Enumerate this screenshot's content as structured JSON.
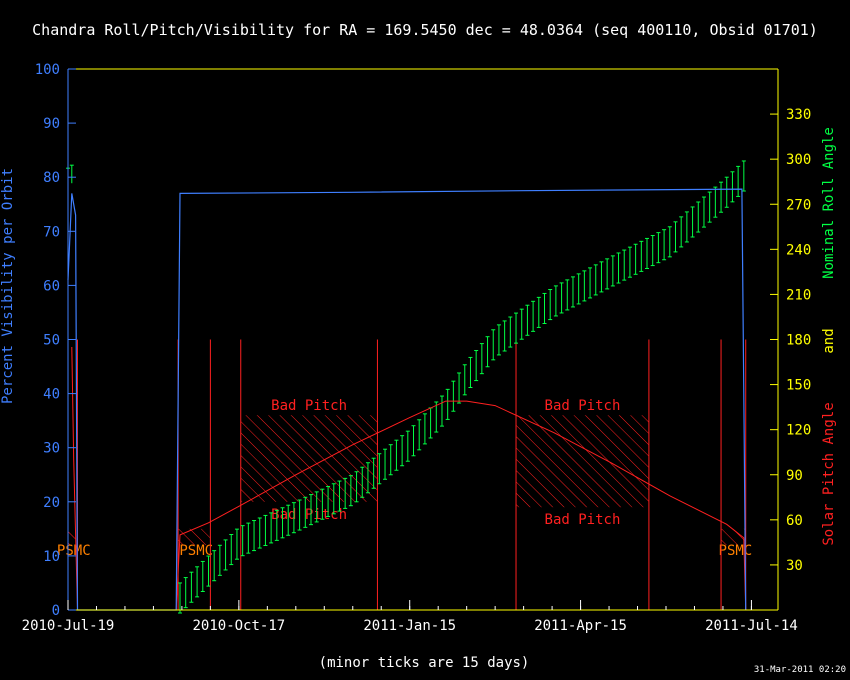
{
  "title": "Chandra Roll/Pitch/Visibility for RA = 169.5450 dec = 48.0364 (seq 400110, Obsid 01701)",
  "footer_note": "(minor ticks are 15 days)",
  "timestamp": "31-Mar-2011 02:20",
  "colors": {
    "background": "#000000",
    "frame": "#ffff00",
    "visibility": "#3f7fff",
    "roll": "#00ff44",
    "pitch": "#ff2020",
    "right_ticks": "#ffff00",
    "psmc": "#ff8000",
    "text": "#ffffff"
  },
  "chart_data": {
    "type": "line",
    "x_axis": {
      "tick_labels": [
        "2010-Jul-19",
        "2010-Oct-17",
        "2011-Jan-15",
        "2011-Apr-15",
        "2011-Jul-14"
      ],
      "range": [
        "2010-Jul-19",
        "2011-Jul-28"
      ],
      "minor_tick_days": 15
    },
    "left_axis": {
      "label": "Percent Visibility per Orbit",
      "range": [
        0,
        100
      ],
      "ticks": [
        0,
        10,
        20,
        30,
        40,
        50,
        60,
        70,
        80,
        90,
        100
      ]
    },
    "right_axis": {
      "label_parts": [
        "Solar Pitch Angle",
        "and",
        "Nominal Roll Angle"
      ],
      "range": [
        0,
        360
      ],
      "ticks": [
        30,
        60,
        90,
        120,
        150,
        180,
        210,
        240,
        270,
        300,
        330
      ]
    },
    "series": [
      {
        "name": "Percent Visibility per Orbit",
        "axis": "left",
        "points": [
          [
            "2010-Jul-19",
            61
          ],
          [
            "2010-Jul-21",
            77
          ],
          [
            "2010-Jul-23",
            73
          ],
          [
            "2010-Jul-24",
            0
          ],
          [
            "2010-Sep-14",
            0
          ],
          [
            "2010-Sep-16",
            77
          ],
          [
            "2010-Dec-15",
            77.2
          ],
          [
            "2011-Mar-15",
            77.5
          ],
          [
            "2011-Jul-09",
            77.8
          ],
          [
            "2011-Jul-10",
            40
          ],
          [
            "2011-Jul-11",
            0
          ]
        ]
      },
      {
        "name": "Solar Pitch Angle",
        "axis": "right",
        "points": [
          [
            "2010-Jul-21",
            175
          ],
          [
            "2010-Jul-22",
            100
          ],
          [
            "2010-Jul-24",
            0
          ],
          [
            "2010-Sep-14",
            0
          ],
          [
            "2010-Sep-16",
            50
          ],
          [
            "2010-Oct-01",
            58
          ],
          [
            "2010-Oct-17",
            69
          ],
          [
            "2010-Nov-16",
            90
          ],
          [
            "2010-Dec-16",
            110
          ],
          [
            "2011-Jan-15",
            128
          ],
          [
            "2011-Feb-03",
            139
          ],
          [
            "2011-Feb-14",
            139
          ],
          [
            "2011-Mar-01",
            136
          ],
          [
            "2011-Apr-01",
            118
          ],
          [
            "2011-May-01",
            98
          ],
          [
            "2011-Jun-01",
            76
          ],
          [
            "2011-Jul-01",
            57
          ],
          [
            "2011-Jul-10",
            48
          ],
          [
            "2011-Jul-11",
            0
          ]
        ]
      },
      {
        "name": "Nominal Roll Angle",
        "axis": "right",
        "error_bar_range": [
          -10,
          10
        ],
        "sample_step_days": 3,
        "start": "2010-Sep-16",
        "end": "2011-Jul-11",
        "points": [
          [
            "2010-Jul-19",
            288
          ],
          [
            "2010-Jul-21",
            290
          ],
          [
            "2010-Sep-16",
            8
          ],
          [
            "2010-Oct-17",
            45
          ],
          [
            "2010-Nov-16",
            62
          ],
          [
            "2010-Dec-16",
            80
          ],
          [
            "2011-Jan-15",
            110
          ],
          [
            "2011-Feb-03",
            135
          ],
          [
            "2011-Feb-14",
            155
          ],
          [
            "2011-Mar-01",
            178
          ],
          [
            "2011-Apr-01",
            205
          ],
          [
            "2011-May-01",
            225
          ],
          [
            "2011-Jun-01",
            245
          ],
          [
            "2011-Jul-01",
            278
          ],
          [
            "2011-Jul-11",
            290
          ]
        ]
      }
    ],
    "bad_pitch_regions": [
      {
        "start": "2010-Oct-18",
        "end": "2010-Dec-29",
        "label": "Bad Pitch",
        "range": [
          20,
          36
        ]
      },
      {
        "start": "2011-Mar-12",
        "end": "2011-May-21",
        "label": "Bad Pitch",
        "range": [
          19,
          36
        ]
      }
    ],
    "psmc_regions": [
      {
        "start": "2010-Jul-19",
        "end": "2010-Jul-23",
        "label": "PSMC"
      },
      {
        "start": "2010-Sep-15",
        "end": "2010-Oct-02",
        "label": "PSMC"
      },
      {
        "start": "2011-Jun-28",
        "end": "2011-Jul-11",
        "label": "PSMC"
      }
    ],
    "vertical_lines": [
      "2010-Jul-24",
      "2010-Sep-15",
      "2010-Oct-02",
      "2010-Oct-18",
      "2010-Dec-29",
      "2011-Mar-12",
      "2011-May-21",
      "2011-Jun-28",
      "2011-Jul-11"
    ]
  }
}
